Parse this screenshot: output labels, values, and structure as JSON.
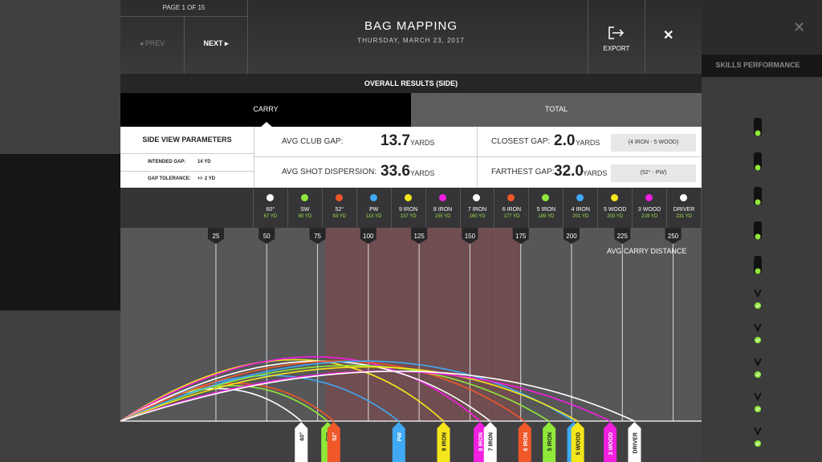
{
  "header": {
    "page_indicator": "PAGE 1 OF 15",
    "prev_label": "◂ PREV",
    "next_label": "NEXT ▸",
    "title": "BAG MAPPING",
    "date": "THURSDAY, MARCH 23, 2017",
    "export_label": "EXPORT",
    "export_icon": "export-icon",
    "close_icon": "close-icon"
  },
  "background": {
    "panel_title": "SKILLS PERFORMANCE",
    "bag_icons": [
      "bag-icon",
      "bag-icon",
      "bag-icon",
      "bag-icon",
      "bag-icon",
      "bag-check-icon",
      "bag-check-icon",
      "bag-check-icon",
      "bag-check-icon",
      "bag-check-icon"
    ]
  },
  "results_title": "OVERALL RESULTS (SIDE)",
  "tabs": [
    {
      "label": "CARRY",
      "active": true
    },
    {
      "label": "TOTAL",
      "active": false
    }
  ],
  "parameters": {
    "title": "SIDE VIEW PARAMETERS",
    "intended_gap_label": "INTENDED GAP:",
    "intended_gap_value": "14 YD",
    "gap_tolerance_label": "GAP TOLERANCE:",
    "gap_tolerance_value": "+/- 2 YD"
  },
  "stats": {
    "avg_club_gap": {
      "label": "AVG CLUB GAP:",
      "value": "13.7",
      "unit": "YARDS"
    },
    "avg_shot_dispersion": {
      "label": "AVG SHOT DISPERSION:",
      "value": "33.6",
      "unit": "YARDS"
    },
    "closest_gap": {
      "label": "CLOSEST GAP:",
      "value": "2.0",
      "unit": "YARDS",
      "clubs": "(4 IRON - 5 WOOD)"
    },
    "farthest_gap": {
      "label": "FARTHEST GAP:",
      "value": "32.0",
      "unit": "YARDS",
      "clubs": "(52° - PW)"
    }
  },
  "clubs": [
    {
      "name": "60°",
      "yards": "67 YD",
      "color": "#ffffff"
    },
    {
      "name": "SW",
      "yards": "80 YD",
      "color": "#8fe83a"
    },
    {
      "name": "52°",
      "yards": "83 YD",
      "color": "#f0582a"
    },
    {
      "name": "PW",
      "yards": "115 YD",
      "color": "#3fa9f5"
    },
    {
      "name": "9 IRON",
      "yards": "137 YD",
      "color": "#f5e61b"
    },
    {
      "name": "8 IRON",
      "yards": "155 YD",
      "color": "#f21ee0"
    },
    {
      "name": "7 IRON",
      "yards": "160 YD",
      "color": "#ffffff"
    },
    {
      "name": "6 IRON",
      "yards": "177 YD",
      "color": "#f0582a"
    },
    {
      "name": "5 IRON",
      "yards": "189 YD",
      "color": "#8fe83a"
    },
    {
      "name": "4 IRON",
      "yards": "201 YD",
      "color": "#3fa9f5"
    },
    {
      "name": "5 WOOD",
      "yards": "203 YD",
      "color": "#f5e61b"
    },
    {
      "name": "3 WOOD",
      "yards": "219 YD",
      "color": "#f21ee0"
    },
    {
      "name": "DRIVER",
      "yards": "231 YD",
      "color": "#ffffff"
    }
  ],
  "chart_data": {
    "type": "line",
    "title": "AVG CARRY DISTANCE",
    "x_ticks": [
      25,
      50,
      75,
      100,
      125,
      150,
      175,
      200,
      225,
      250
    ],
    "xlim": [
      -22,
      264
    ],
    "highlight_ranges": [
      [
        79,
        96
      ],
      [
        96,
        109
      ],
      [
        109,
        126
      ],
      [
        126,
        142
      ],
      [
        142,
        160
      ],
      [
        160,
        175
      ]
    ],
    "series": [
      {
        "name": "60°",
        "carry": 67,
        "apex": 0.34,
        "color": "#ffffff"
      },
      {
        "name": "SW",
        "carry": 80,
        "apex": 0.38,
        "color": "#8fe83a"
      },
      {
        "name": "52°",
        "carry": 83,
        "apex": 0.41,
        "color": "#f0582a"
      },
      {
        "name": "PW",
        "carry": 115,
        "apex": 0.52,
        "color": "#3fa9f5"
      },
      {
        "name": "9 IRON",
        "carry": 137,
        "apex": 0.74,
        "color": "#f5e61b"
      },
      {
        "name": "8 IRON",
        "carry": 155,
        "apex": 0.78,
        "color": "#f21ee0"
      },
      {
        "name": "7 IRON",
        "carry": 160,
        "apex": 0.72,
        "color": "#ffffff"
      },
      {
        "name": "6 IRON",
        "carry": 177,
        "apex": 0.72,
        "color": "#f0582a"
      },
      {
        "name": "5 IRON",
        "carry": 189,
        "apex": 0.66,
        "color": "#8fe83a"
      },
      {
        "name": "4 IRON",
        "carry": 201,
        "apex": 0.72,
        "color": "#3fa9f5"
      },
      {
        "name": "5 WOOD",
        "carry": 203,
        "apex": 0.64,
        "color": "#f5e61b"
      },
      {
        "name": "3 WOOD",
        "carry": 219,
        "apex": 0.58,
        "color": "#f21ee0"
      },
      {
        "name": "DRIVER",
        "carry": 231,
        "apex": 0.58,
        "color": "#ffffff"
      }
    ]
  }
}
